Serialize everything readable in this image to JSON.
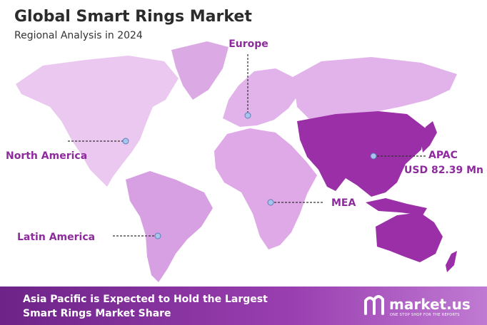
{
  "header": {
    "title": "Global Smart Rings Market",
    "subtitle": "Regional Analysis in 2024"
  },
  "regions": [
    {
      "label": "Europe"
    },
    {
      "label": "North America"
    },
    {
      "label": "Latin America"
    },
    {
      "label": "MEA"
    },
    {
      "label": "APAC",
      "value_label": "USD 82.39 Mn"
    }
  ],
  "footer": {
    "lines": [
      "Asia Pacific is Expected to Hold the Largest",
      "Smart Rings Market Share"
    ],
    "logo": "market.us",
    "tagline": "ONE STOP SHOP FOR THE REPORTS"
  }
}
